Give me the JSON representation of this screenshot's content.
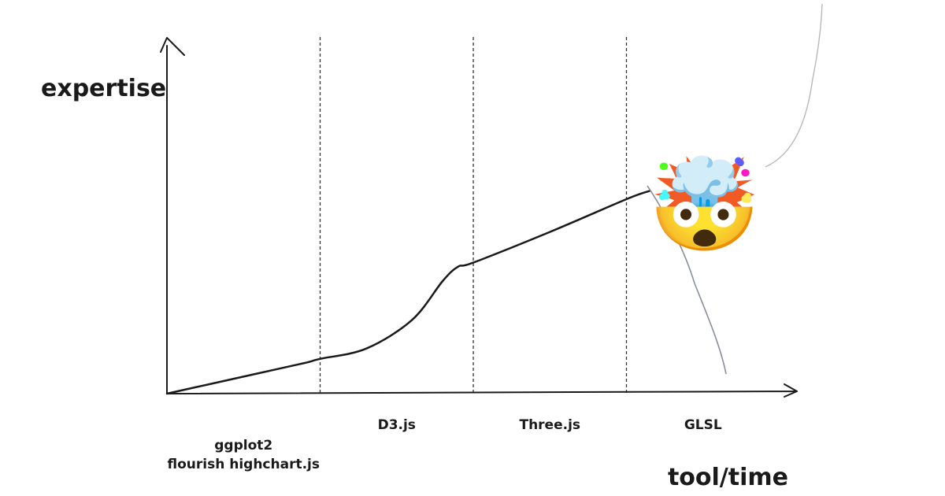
{
  "chart_data": {
    "type": "line",
    "xlabel": "tool/time",
    "ylabel": "expertise",
    "stages": [
      {
        "lines": [
          "ggplot2",
          "flourish highchart.js"
        ]
      },
      {
        "lines": [
          "D3.js"
        ]
      },
      {
        "lines": [
          "Three.js"
        ]
      },
      {
        "lines": [
          "GLSL"
        ]
      }
    ],
    "series": [
      {
        "x": [
          0,
          0.3,
          0.6,
          0.9,
          1.0,
          1.3,
          1.6,
          1.8,
          1.9,
          2.0,
          2.5,
          3.0,
          3.15
        ],
        "y": [
          0,
          0.05,
          0.1,
          0.15,
          0.17,
          0.22,
          0.36,
          0.55,
          0.62,
          0.64,
          0.79,
          0.95,
          0.99
        ]
      }
    ],
    "emoji": "🤯",
    "colors": {
      "line": "#1a1a1a",
      "fuse": "#8a8f9c",
      "axis": "#1a1a1a",
      "divider": "#333333"
    },
    "grid": false
  }
}
